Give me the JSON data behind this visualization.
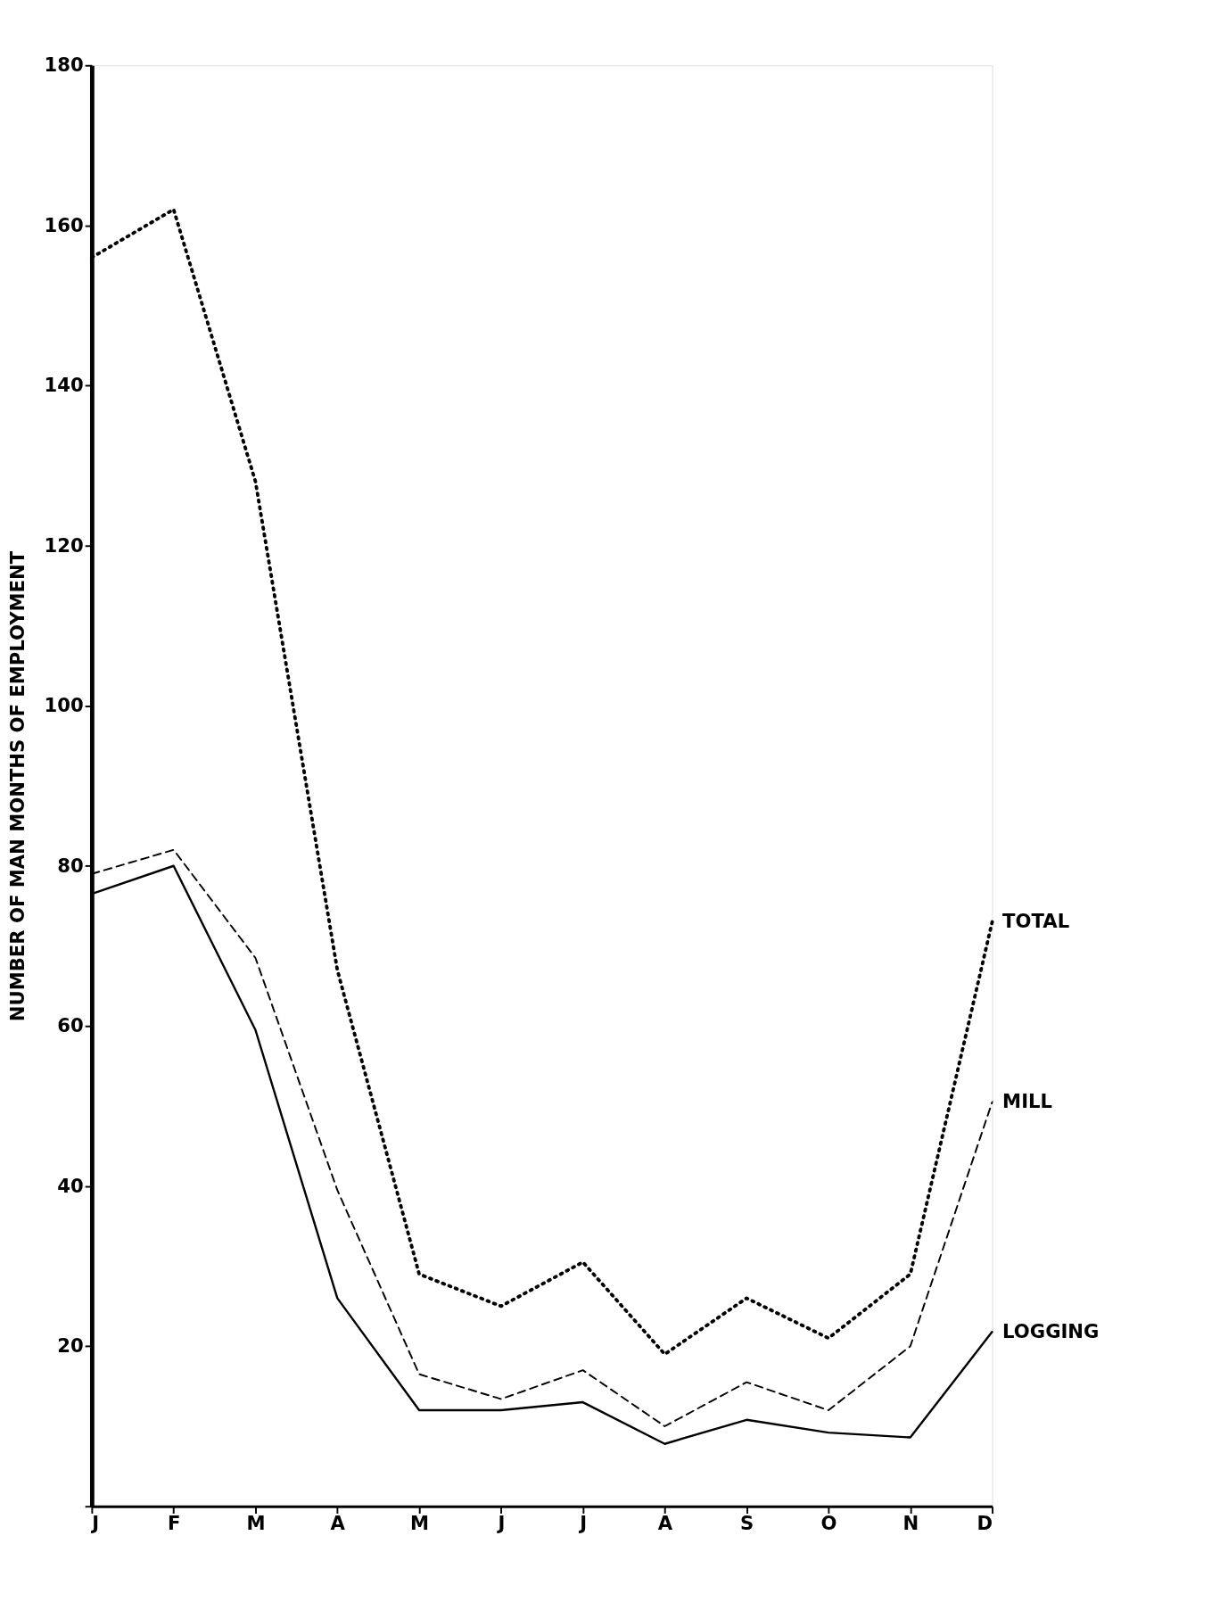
{
  "chart_data": {
    "type": "line",
    "ylabel": "NUMBER OF MAN MONTHS OF EMPLOYMENT",
    "categories": [
      "J",
      "F",
      "M",
      "A",
      "M",
      "J",
      "J",
      "A",
      "S",
      "O",
      "N",
      "D"
    ],
    "ylim": [
      0,
      180
    ],
    "yticks": [
      {
        "value": 0,
        "label": null
      },
      20,
      40,
      60,
      80,
      100,
      120,
      140,
      160,
      180
    ],
    "grid": false,
    "marker": "none",
    "series": [
      {
        "name": "TOTAL",
        "color": "#000000",
        "line_style": "dotted",
        "values": [
          156,
          162,
          128,
          67,
          29,
          25,
          30.5,
          19,
          26,
          21,
          29,
          73
        ]
      },
      {
        "name": "MILL",
        "color": "#000000",
        "line_style": "dashed",
        "values": [
          79,
          82,
          68.5,
          39.5,
          16.5,
          13.4,
          17,
          10,
          15.5,
          12,
          20,
          50.5
        ]
      },
      {
        "name": "LOGGING",
        "color": "#000000",
        "line_style": "solid",
        "values": [
          76.5,
          80,
          59.5,
          26,
          12,
          12,
          13,
          7.8,
          10.8,
          9.2,
          8.6,
          21.8
        ]
      }
    ]
  }
}
